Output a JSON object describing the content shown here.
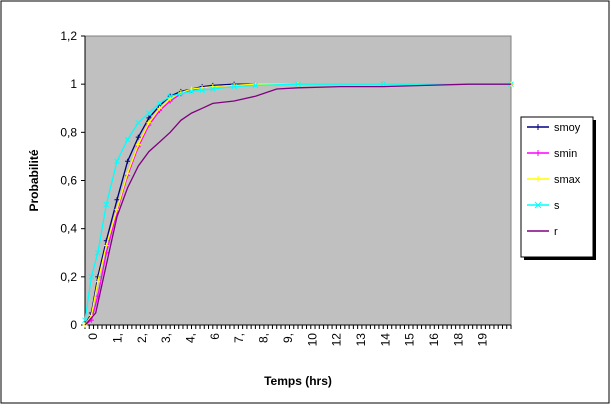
{
  "chart_data": {
    "type": "line",
    "xlabel": "Temps (hrs)",
    "ylabel": "Probabilité",
    "ylim": [
      0,
      1.2
    ],
    "yticks": [
      "0",
      "0,2",
      "0,4",
      "0,6",
      "0,8",
      "1",
      "1,2"
    ],
    "xlim": [
      0,
      20
    ],
    "xticks": [
      "0",
      "1,",
      "2,",
      "3,",
      "4,",
      "6",
      "7,",
      "8,",
      "9,",
      "10",
      "12",
      "13",
      "14",
      "15",
      "16",
      "18",
      "19"
    ],
    "grid": false,
    "plot_background": "#c0c0c0",
    "legend_position": "right",
    "series": [
      {
        "name": "smoy",
        "color": "#000080",
        "marker": "plus",
        "x": [
          0,
          0.3,
          0.6,
          1,
          1.5,
          2,
          2.5,
          3,
          3.5,
          4,
          4.5,
          5,
          5.5,
          6,
          7,
          8,
          10,
          14,
          20
        ],
        "y": [
          0,
          0.05,
          0.2,
          0.35,
          0.52,
          0.68,
          0.78,
          0.86,
          0.91,
          0.95,
          0.97,
          0.98,
          0.99,
          0.995,
          1,
          1,
          1,
          1,
          1
        ]
      },
      {
        "name": "smin",
        "color": "#ff00ff",
        "marker": "plus",
        "x": [
          0,
          0.3,
          0.6,
          1,
          1.5,
          2,
          2.5,
          3,
          3.5,
          4,
          4.5,
          5,
          5.5,
          6,
          7,
          8,
          10,
          14,
          20
        ],
        "y": [
          0,
          0.02,
          0.12,
          0.3,
          0.47,
          0.62,
          0.74,
          0.83,
          0.89,
          0.93,
          0.96,
          0.975,
          0.985,
          0.99,
          0.995,
          1,
          1,
          1,
          1
        ]
      },
      {
        "name": "smax",
        "color": "#ffff00",
        "marker": "plus",
        "x": [
          0,
          0.3,
          0.6,
          1,
          1.5,
          2,
          2.5,
          3,
          3.5,
          4,
          4.5,
          5,
          5.5,
          6,
          7,
          8,
          10,
          14,
          20
        ],
        "y": [
          0,
          0.04,
          0.18,
          0.33,
          0.48,
          0.63,
          0.75,
          0.84,
          0.9,
          0.94,
          0.965,
          0.98,
          0.985,
          0.99,
          0.995,
          1,
          1,
          1,
          1
        ]
      },
      {
        "name": "s",
        "color": "#00ffff",
        "marker": "x",
        "x": [
          0,
          0.3,
          0.6,
          1,
          1.5,
          2,
          2.5,
          3,
          3.5,
          4,
          4.5,
          5,
          5.5,
          6,
          7,
          8,
          10,
          14,
          20
        ],
        "y": [
          0.02,
          0.2,
          0.3,
          0.5,
          0.68,
          0.77,
          0.84,
          0.88,
          0.92,
          0.95,
          0.96,
          0.97,
          0.975,
          0.98,
          0.99,
          0.995,
          1,
          1,
          1
        ]
      },
      {
        "name": "r",
        "color": "#800080",
        "marker": "none",
        "x": [
          0,
          0.5,
          1,
          1.5,
          2,
          2.5,
          3,
          3.5,
          4,
          4.5,
          5,
          5.5,
          6,
          7,
          8,
          9,
          10,
          12,
          14,
          16,
          18,
          20
        ],
        "y": [
          0,
          0.05,
          0.25,
          0.45,
          0.57,
          0.66,
          0.72,
          0.76,
          0.8,
          0.85,
          0.88,
          0.9,
          0.92,
          0.93,
          0.95,
          0.98,
          0.985,
          0.99,
          0.99,
          0.995,
          1,
          1
        ]
      }
    ]
  }
}
